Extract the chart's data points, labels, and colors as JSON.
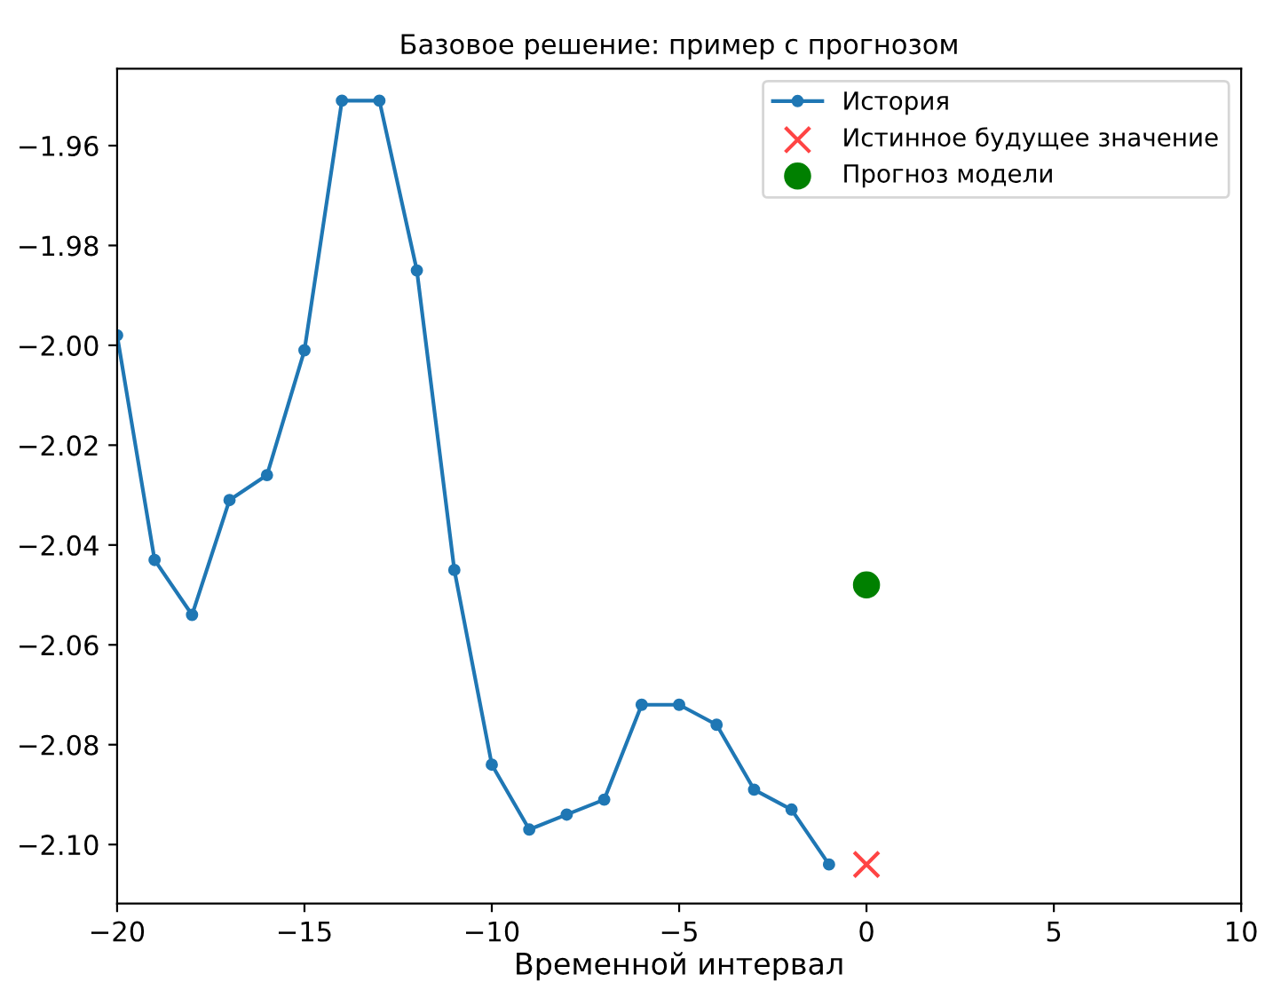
{
  "chart_data": {
    "type": "line",
    "title": "Базовое решение: пример с прогнозом",
    "xlabel": "Временной интервал",
    "xlim": [
      -20,
      10
    ],
    "xticks": [
      {
        "value": -20,
        "label": "−20"
      },
      {
        "value": -15,
        "label": "−15"
      },
      {
        "value": -10,
        "label": "−10"
      },
      {
        "value": -5,
        "label": "−5"
      },
      0,
      5,
      10
    ],
    "ylim": [
      -2.1118,
      -1.9446
    ],
    "yticks": [
      {
        "value": -2.1,
        "label": "−2.10"
      },
      {
        "value": -2.08,
        "label": "−2.08"
      },
      {
        "value": -2.06,
        "label": "−2.06"
      },
      {
        "value": -2.04,
        "label": "−2.04"
      },
      {
        "value": -2.02,
        "label": "−2.02"
      },
      {
        "value": -2.0,
        "label": "−2.00"
      },
      {
        "value": -1.98,
        "label": "−1.98"
      },
      {
        "value": -1.96,
        "label": "−1.96"
      }
    ],
    "grid": false,
    "legend": "top right",
    "series": [
      {
        "name": "История",
        "marker": "circle",
        "color": "#1f77b4",
        "x": [
          -20,
          -19,
          -18,
          -17,
          -16,
          -15,
          -14,
          -13,
          -12,
          -11,
          -10,
          -9,
          -8,
          -7,
          -6,
          -5,
          -4,
          -3,
          -2,
          -1
        ],
        "values": [
          -1.998,
          -2.043,
          -2.054,
          -2.031,
          -2.026,
          -2.001,
          -1.951,
          -1.951,
          -1.985,
          -2.045,
          -2.084,
          -2.097,
          -2.094,
          -2.091,
          -2.072,
          -2.072,
          -2.076,
          -2.089,
          -2.093,
          -2.104
        ]
      },
      {
        "name": "Истинное будущее значение",
        "type": "scatter",
        "marker": "cross",
        "color": "#ff4444",
        "x": [
          0
        ],
        "values": [
          -2.104
        ]
      },
      {
        "name": "Прогноз модели",
        "type": "scatter",
        "marker": "circle",
        "color": "#008000",
        "x": [
          0
        ],
        "values": [
          -2.048
        ]
      }
    ]
  }
}
